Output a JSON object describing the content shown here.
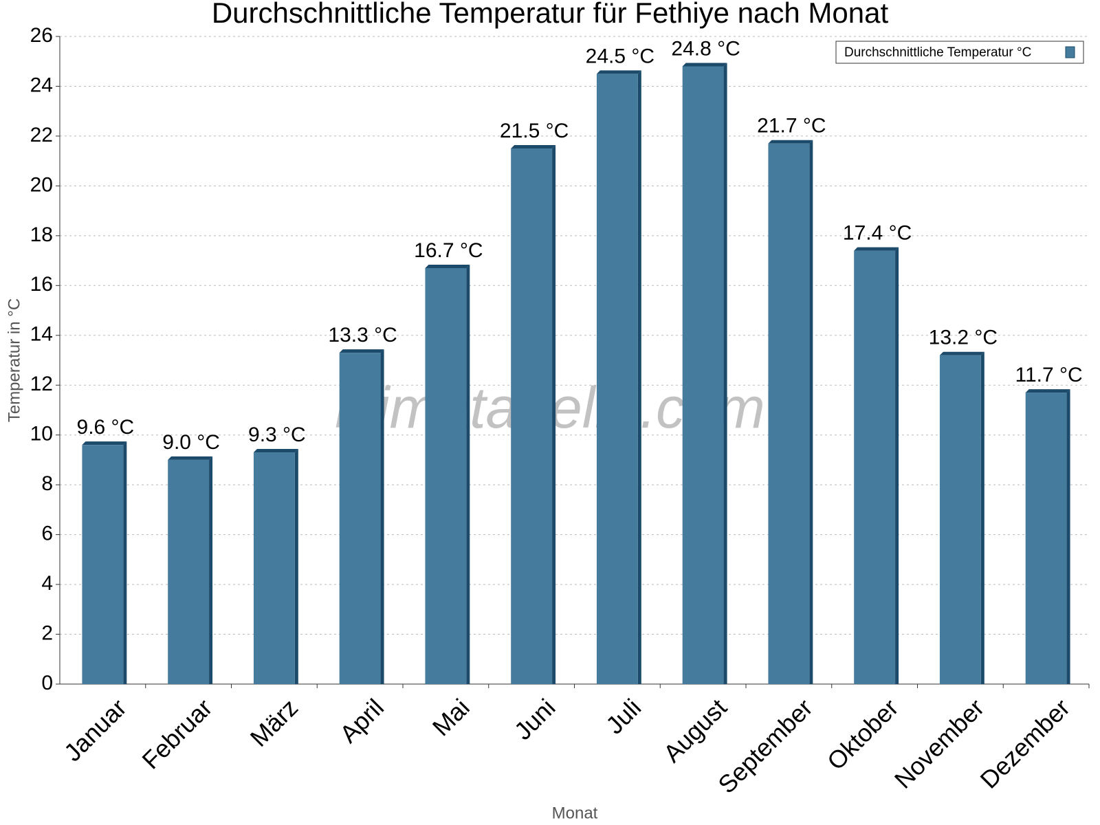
{
  "chart_data": {
    "type": "bar",
    "title": "Durchschnittliche Temperatur für Fethiye nach Monat",
    "x_label": "Monat",
    "y_label": "Temperatur in °C",
    "watermark": "klimatabelle.com",
    "categories": [
      "Januar",
      "Februar",
      "März",
      "April",
      "Mai",
      "Juni",
      "Juli",
      "August",
      "September",
      "Oktober",
      "November",
      "Dezember"
    ],
    "series": [
      {
        "name": "Durchschnittliche Temperatur °C",
        "color": "#457b9d",
        "values": [
          9.6,
          9.0,
          9.3,
          13.3,
          16.7,
          21.5,
          24.5,
          24.8,
          21.7,
          17.4,
          13.2,
          11.7
        ],
        "value_labels": [
          "9.6 °C",
          "9.0 °C",
          "9.3 °C",
          "13.3 °C",
          "16.7 °C",
          "21.5 °C",
          "24.5 °C",
          "24.8 °C",
          "21.7 °C",
          "17.4 °C",
          "13.2 °C",
          "11.7 °C"
        ]
      }
    ],
    "ylim": [
      0,
      26
    ],
    "yticks": [
      0,
      2,
      4,
      6,
      8,
      10,
      12,
      14,
      16,
      18,
      20,
      22,
      24,
      26
    ],
    "grid": true,
    "legend": "top-right"
  }
}
